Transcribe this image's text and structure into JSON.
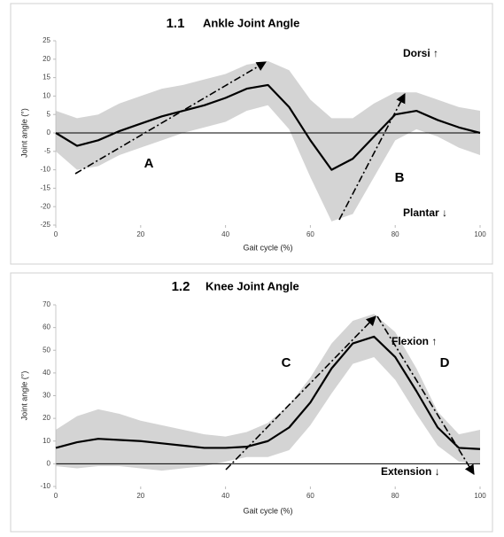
{
  "chart_data": [
    {
      "type": "line",
      "label": "1.1",
      "title": "Ankle Joint Angle",
      "xlabel": "Gait cycle (%)",
      "ylabel": "Joint angle (°)",
      "x": [
        0,
        5,
        10,
        15,
        20,
        25,
        30,
        35,
        40,
        45,
        50,
        55,
        60,
        65,
        70,
        75,
        80,
        85,
        90,
        95,
        100
      ],
      "mean": [
        0,
        -3.5,
        -2,
        0.5,
        2.5,
        4.5,
        6,
        7.5,
        9.5,
        12,
        13,
        7,
        -2,
        -10,
        -7,
        -1,
        5,
        6,
        3.5,
        1.5,
        0
      ],
      "upper": [
        6,
        4,
        5,
        8,
        10,
        12,
        13,
        14.5,
        16,
        18.5,
        19.5,
        17,
        9,
        4,
        4,
        8,
        11,
        11,
        9,
        7,
        6
      ],
      "lower": [
        -5,
        -10,
        -9,
        -6,
        -4,
        -2,
        0,
        1.5,
        3,
        6,
        7.5,
        1,
        -12,
        -24,
        -22,
        -12,
        -2,
        1,
        -1,
        -4,
        -6
      ],
      "color": "#000000",
      "band_color": "#d4d4d4",
      "xlim": [
        0,
        100
      ],
      "xticks": [
        0,
        20,
        40,
        60,
        80,
        100
      ],
      "ylim": [
        -25,
        25
      ],
      "yticks": [
        -25,
        -20,
        -15,
        -10,
        -5,
        0,
        5,
        10,
        15,
        20,
        25
      ],
      "annotations": [
        "Dorsi ↑",
        "Plantar ↓",
        "A",
        "B"
      ]
    },
    {
      "type": "line",
      "label": "1.2",
      "title": "Knee Joint Angle",
      "xlabel": "Gait cycle (%)",
      "ylabel": "Joint angle (°)",
      "x": [
        0,
        5,
        10,
        15,
        20,
        25,
        30,
        35,
        40,
        45,
        50,
        55,
        60,
        65,
        70,
        75,
        80,
        85,
        90,
        95,
        100
      ],
      "mean": [
        7,
        9.5,
        11,
        10.5,
        10,
        9,
        8,
        7,
        7,
        7.5,
        10,
        16,
        27,
        42,
        53,
        56,
        47,
        32,
        16,
        7,
        6.5
      ],
      "upper": [
        15,
        21,
        24,
        22,
        19,
        17,
        15,
        13,
        12,
        14,
        18,
        26,
        38,
        53,
        63,
        66,
        58,
        42,
        23,
        13,
        15
      ],
      "lower": [
        -1,
        -2,
        -1,
        -1,
        -2,
        -3,
        -2,
        -1,
        1,
        3,
        3,
        6,
        17,
        31,
        44,
        47,
        37,
        22,
        8,
        1,
        0
      ],
      "color": "#000000",
      "band_color": "#d4d4d4",
      "xlim": [
        0,
        100
      ],
      "xticks": [
        0,
        20,
        40,
        60,
        80,
        100
      ],
      "ylim": [
        -10,
        70
      ],
      "yticks": [
        -10,
        0,
        10,
        20,
        30,
        40,
        50,
        60,
        70
      ],
      "annotations": [
        "Flexion ↑",
        "Extension ↓",
        "C",
        "D"
      ]
    }
  ]
}
